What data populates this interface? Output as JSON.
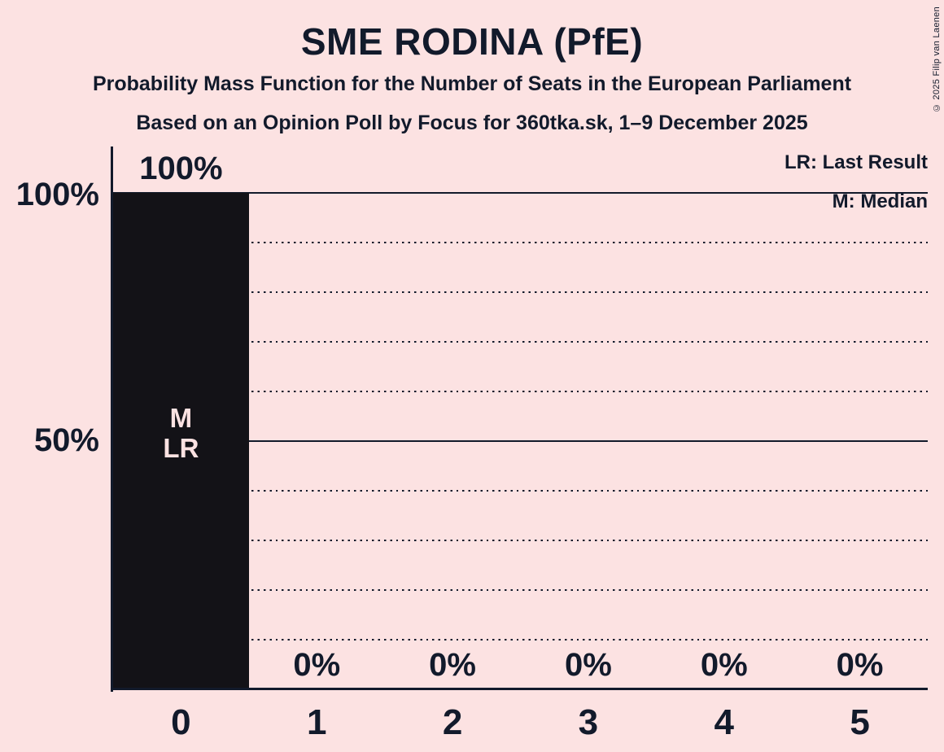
{
  "copyright": "© 2025 Filip van Laenen",
  "colors": {
    "background": "#fce2e2",
    "bar": "#131217",
    "text": "#121a2b",
    "bar_inner_label": "#fce2e2"
  },
  "chart_data": {
    "type": "bar",
    "title": "SME RODINA (PfE)",
    "subtitle_line1": "Probability Mass Function for the Number of Seats in the European Parliament",
    "subtitle_line2": "Based on an Opinion Poll by Focus for 360tka.sk, 1–9 December 2025",
    "categories": [
      "0",
      "1",
      "2",
      "3",
      "4",
      "5"
    ],
    "values": [
      100,
      0,
      0,
      0,
      0,
      0
    ],
    "value_labels": [
      "100%",
      "0%",
      "0%",
      "0%",
      "0%",
      "0%"
    ],
    "bar_annotations": [
      [
        "M",
        "LR"
      ],
      [],
      [],
      [],
      [],
      []
    ],
    "median_seats": "0",
    "last_result_seats": "0",
    "ylim": [
      0,
      100
    ],
    "ytick_labels": [
      "100%",
      "50%"
    ],
    "ytick_values": [
      100,
      50
    ],
    "legend": [
      "LR: Last Result",
      "M: Median"
    ],
    "grid": {
      "solid_percents": [
        100,
        50
      ],
      "dotted_percents": [
        90,
        80,
        70,
        60,
        40,
        30,
        20,
        10
      ]
    },
    "legend_position": "top-right",
    "xlabel": "",
    "ylabel": ""
  }
}
